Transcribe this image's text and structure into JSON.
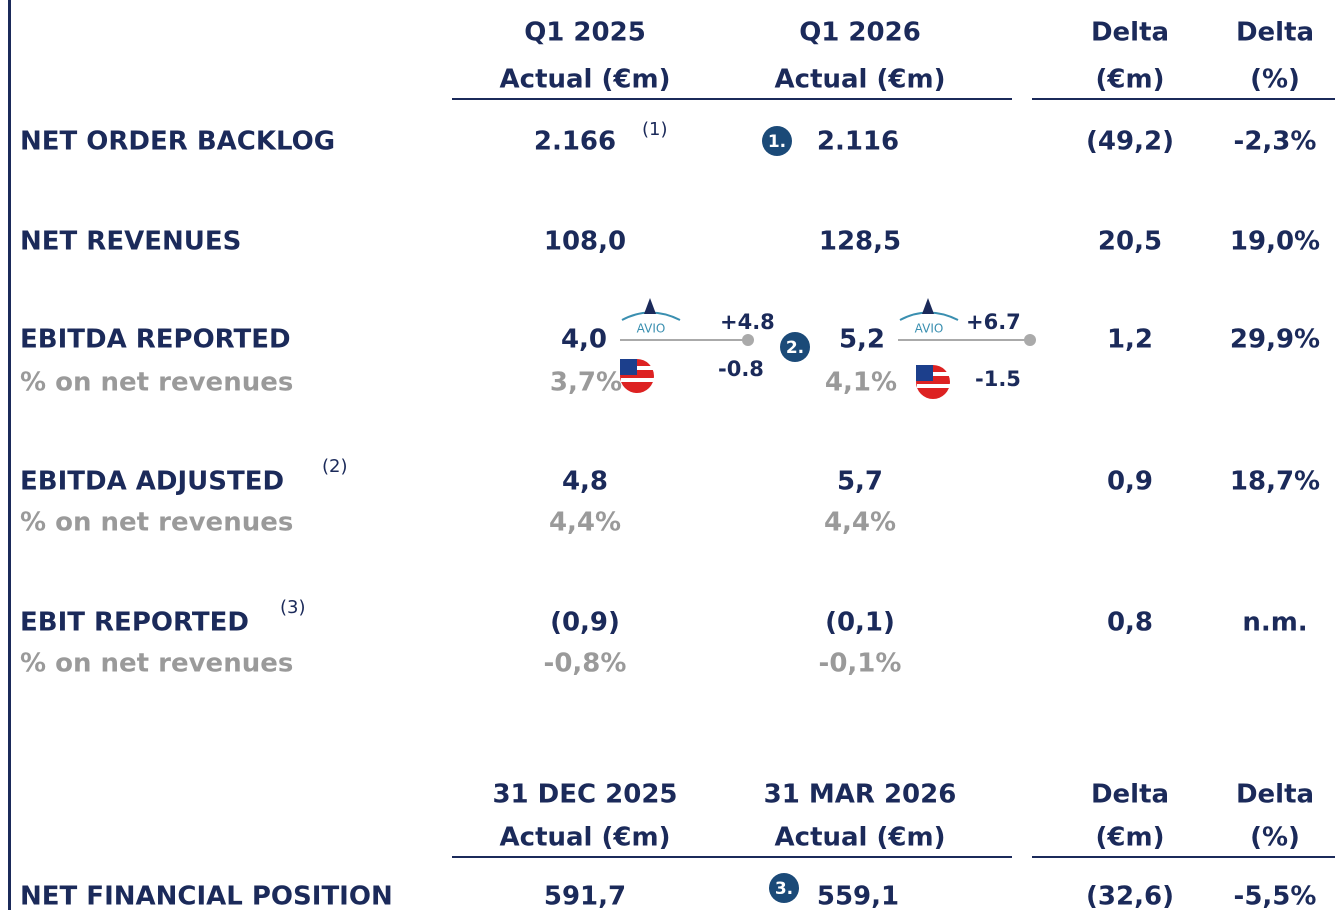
{
  "table_1": {
    "columns": [
      {
        "title": "Q1 2025",
        "unit": "Actual (€m)"
      },
      {
        "title": "Q1 2026",
        "unit": "Actual (€m)"
      },
      {
        "title": "Delta",
        "unit": "(€m)"
      },
      {
        "title": "Delta",
        "unit": "(%)"
      }
    ],
    "rows": [
      {
        "label": "NET ORDER BACKLOG",
        "values": [
          "2.166",
          "2.116",
          "(49,2)",
          "-2,3%"
        ],
        "value_note": "(1)",
        "badge": "1."
      },
      {
        "label": "NET REVENUES",
        "values": [
          "108,0",
          "128,5",
          "20,5",
          "19,0%"
        ]
      },
      {
        "label": "EBITDA REPORTED",
        "values": [
          "4,0",
          "5,2",
          "1,2",
          "29,9%"
        ],
        "sub_label": "% on net revenues",
        "sub_values": [
          "3,7%",
          "4,1%"
        ],
        "badge": "2.",
        "bridges": [
          {
            "logo": "AVIO",
            "avio": "+4.8",
            "us": "-0.8"
          },
          {
            "logo": "AVIO",
            "avio": "+6.7",
            "us": "-1.5"
          }
        ]
      },
      {
        "label": "EBITDA ADJUSTED",
        "label_note": "(2)",
        "values": [
          "4,8",
          "5,7",
          "0,9",
          "18,7%"
        ],
        "sub_label": "% on net revenues",
        "sub_values": [
          "4,4%",
          "4,4%"
        ]
      },
      {
        "label": "EBIT REPORTED",
        "label_note": "(3)",
        "values": [
          "(0,9)",
          "(0,1)",
          "0,8",
          "n.m."
        ],
        "sub_label": "% on net revenues",
        "sub_values": [
          "-0,8%",
          "-0,1%"
        ]
      }
    ]
  },
  "table_2": {
    "columns": [
      {
        "title": "31 DEC 2025",
        "unit": "Actual (€m)"
      },
      {
        "title": "31 MAR 2026",
        "unit": "Actual (€m)"
      },
      {
        "title": "Delta",
        "unit": "(€m)"
      },
      {
        "title": "Delta",
        "unit": "(%)"
      }
    ],
    "rows": [
      {
        "label": "NET FINANCIAL POSITION",
        "values": [
          "591,7",
          "559,1",
          "(32,6)",
          "-5,5%"
        ],
        "badge": "3."
      }
    ]
  }
}
